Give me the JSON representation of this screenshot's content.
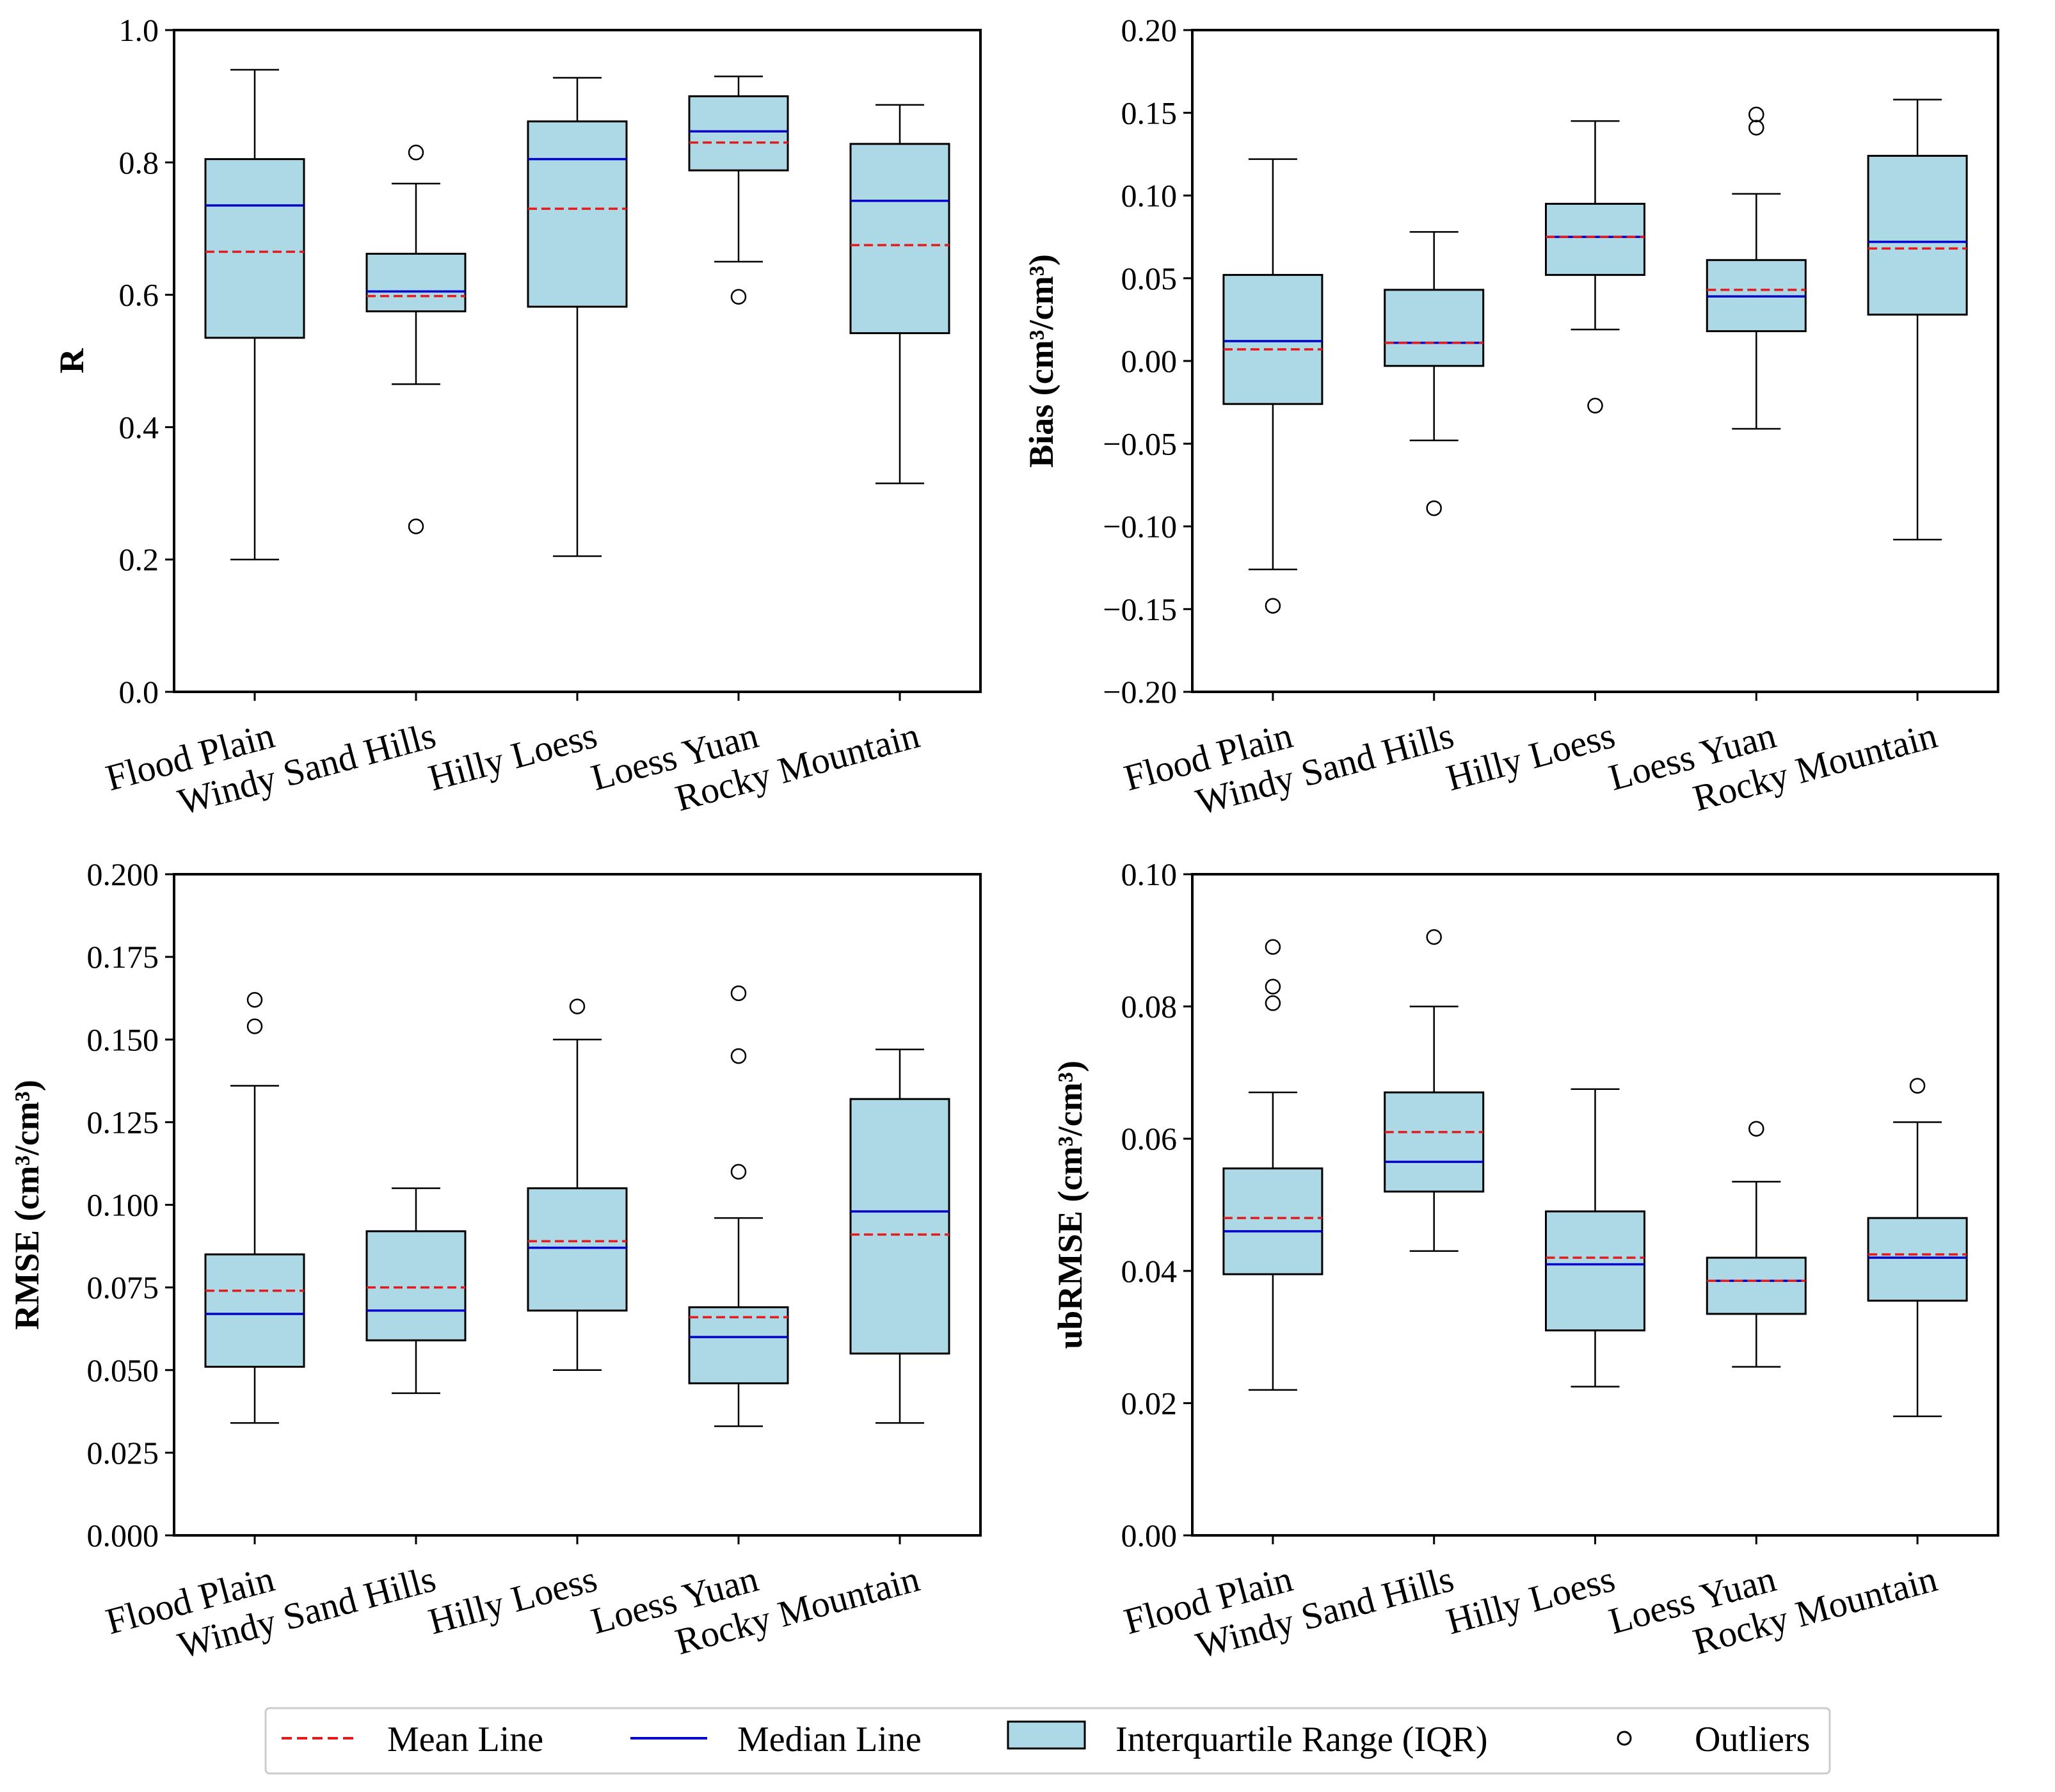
{
  "colors": {
    "box_fill": "#add8e6",
    "box_edge": "#000000",
    "mean_line": "#e41a1c",
    "median_line": "#0000cc",
    "whisker": "#000000",
    "outlier_edge": "#000000"
  },
  "chart_data": [
    {
      "type": "box",
      "ylabel": "R",
      "ylim": [
        0.0,
        1.0
      ],
      "yticks": [
        "0.0",
        "0.2",
        "0.4",
        "0.6",
        "0.8",
        "1.0"
      ],
      "ytick_values": [
        0.0,
        0.2,
        0.4,
        0.6,
        0.8,
        1.0
      ],
      "categories": [
        "Flood Plain",
        "Windy Sand Hills",
        "Hilly Loess",
        "Loess Yuan",
        "Rocky Mountain"
      ],
      "boxes": [
        {
          "whisker_low": 0.2,
          "q1": 0.535,
          "median": 0.735,
          "mean": 0.665,
          "q3": 0.805,
          "whisker_high": 0.94,
          "outliers": []
        },
        {
          "whisker_low": 0.465,
          "q1": 0.575,
          "median": 0.605,
          "mean": 0.598,
          "q3": 0.662,
          "whisker_high": 0.768,
          "outliers": [
            0.815,
            0.25
          ]
        },
        {
          "whisker_low": 0.205,
          "q1": 0.582,
          "median": 0.805,
          "mean": 0.73,
          "q3": 0.862,
          "whisker_high": 0.928,
          "outliers": []
        },
        {
          "whisker_low": 0.65,
          "q1": 0.788,
          "median": 0.847,
          "mean": 0.83,
          "q3": 0.9,
          "whisker_high": 0.93,
          "outliers": [
            0.597
          ]
        },
        {
          "whisker_low": 0.315,
          "q1": 0.542,
          "median": 0.742,
          "mean": 0.675,
          "q3": 0.828,
          "whisker_high": 0.887,
          "outliers": []
        }
      ]
    },
    {
      "type": "box",
      "ylabel": "Bias (cm³/cm³)",
      "ylim": [
        -0.2,
        0.2
      ],
      "yticks": [
        "−0.20",
        "−0.15",
        "−0.10",
        "−0.05",
        "0.00",
        "0.05",
        "0.10",
        "0.15",
        "0.20"
      ],
      "ytick_values": [
        -0.2,
        -0.15,
        -0.1,
        -0.05,
        0.0,
        0.05,
        0.1,
        0.15,
        0.2
      ],
      "categories": [
        "Flood Plain",
        "Windy Sand Hills",
        "Hilly Loess",
        "Loess Yuan",
        "Rocky Mountain"
      ],
      "boxes": [
        {
          "whisker_low": -0.126,
          "q1": -0.026,
          "median": 0.012,
          "mean": 0.007,
          "q3": 0.052,
          "whisker_high": 0.122,
          "outliers": [
            -0.148
          ]
        },
        {
          "whisker_low": -0.048,
          "q1": -0.003,
          "median": 0.011,
          "mean": 0.011,
          "q3": 0.043,
          "whisker_high": 0.078,
          "outliers": [
            -0.089
          ]
        },
        {
          "whisker_low": 0.019,
          "q1": 0.052,
          "median": 0.075,
          "mean": 0.075,
          "q3": 0.095,
          "whisker_high": 0.145,
          "outliers": [
            -0.027
          ]
        },
        {
          "whisker_low": -0.041,
          "q1": 0.018,
          "median": 0.039,
          "mean": 0.043,
          "q3": 0.061,
          "whisker_high": 0.101,
          "outliers": [
            0.149,
            0.141
          ]
        },
        {
          "whisker_low": -0.108,
          "q1": 0.028,
          "median": 0.072,
          "mean": 0.068,
          "q3": 0.124,
          "whisker_high": 0.158,
          "outliers": []
        }
      ]
    },
    {
      "type": "box",
      "ylabel": "RMSE (cm³/cm³)",
      "ylim": [
        0.0,
        0.2
      ],
      "yticks": [
        "0.000",
        "0.025",
        "0.050",
        "0.075",
        "0.100",
        "0.125",
        "0.150",
        "0.175",
        "0.200"
      ],
      "ytick_values": [
        0.0,
        0.025,
        0.05,
        0.075,
        0.1,
        0.125,
        0.15,
        0.175,
        0.2
      ],
      "categories": [
        "Flood Plain",
        "Windy Sand Hills",
        "Hilly Loess",
        "Loess Yuan",
        "Rocky Mountain"
      ],
      "boxes": [
        {
          "whisker_low": 0.034,
          "q1": 0.051,
          "median": 0.067,
          "mean": 0.074,
          "q3": 0.085,
          "whisker_high": 0.136,
          "outliers": [
            0.162,
            0.154
          ]
        },
        {
          "whisker_low": 0.043,
          "q1": 0.059,
          "median": 0.068,
          "mean": 0.075,
          "q3": 0.092,
          "whisker_high": 0.105,
          "outliers": []
        },
        {
          "whisker_low": 0.05,
          "q1": 0.068,
          "median": 0.087,
          "mean": 0.089,
          "q3": 0.105,
          "whisker_high": 0.15,
          "outliers": [
            0.16
          ]
        },
        {
          "whisker_low": 0.033,
          "q1": 0.046,
          "median": 0.06,
          "mean": 0.066,
          "q3": 0.069,
          "whisker_high": 0.096,
          "outliers": [
            0.164,
            0.145,
            0.11
          ]
        },
        {
          "whisker_low": 0.034,
          "q1": 0.055,
          "median": 0.098,
          "mean": 0.091,
          "q3": 0.132,
          "whisker_high": 0.147,
          "outliers": []
        }
      ]
    },
    {
      "type": "box",
      "ylabel": "ubRMSE (cm³/cm³)",
      "ylim": [
        0.0,
        0.1
      ],
      "yticks": [
        "0.00",
        "0.02",
        "0.04",
        "0.06",
        "0.08",
        "0.10"
      ],
      "ytick_values": [
        0.0,
        0.02,
        0.04,
        0.06,
        0.08,
        0.1
      ],
      "categories": [
        "Flood Plain",
        "Windy Sand Hills",
        "Hilly Loess",
        "Loess Yuan",
        "Rocky Mountain"
      ],
      "boxes": [
        {
          "whisker_low": 0.022,
          "q1": 0.0395,
          "median": 0.046,
          "mean": 0.048,
          "q3": 0.0555,
          "whisker_high": 0.067,
          "outliers": [
            0.089,
            0.083,
            0.0805
          ]
        },
        {
          "whisker_low": 0.043,
          "q1": 0.052,
          "median": 0.0565,
          "mean": 0.061,
          "q3": 0.067,
          "whisker_high": 0.08,
          "outliers": [
            0.0905
          ]
        },
        {
          "whisker_low": 0.0225,
          "q1": 0.031,
          "median": 0.041,
          "mean": 0.042,
          "q3": 0.049,
          "whisker_high": 0.0675,
          "outliers": []
        },
        {
          "whisker_low": 0.0255,
          "q1": 0.0335,
          "median": 0.0385,
          "mean": 0.0385,
          "q3": 0.042,
          "whisker_high": 0.0535,
          "outliers": [
            0.0615
          ]
        },
        {
          "whisker_low": 0.018,
          "q1": 0.0355,
          "median": 0.042,
          "mean": 0.0425,
          "q3": 0.048,
          "whisker_high": 0.0625,
          "outliers": [
            0.068
          ]
        }
      ]
    }
  ],
  "legend": {
    "mean_label": "Mean Line",
    "median_label": "Median Line",
    "iqr_label": "Interquartile Range (IQR)",
    "outlier_label": "Outliers"
  }
}
